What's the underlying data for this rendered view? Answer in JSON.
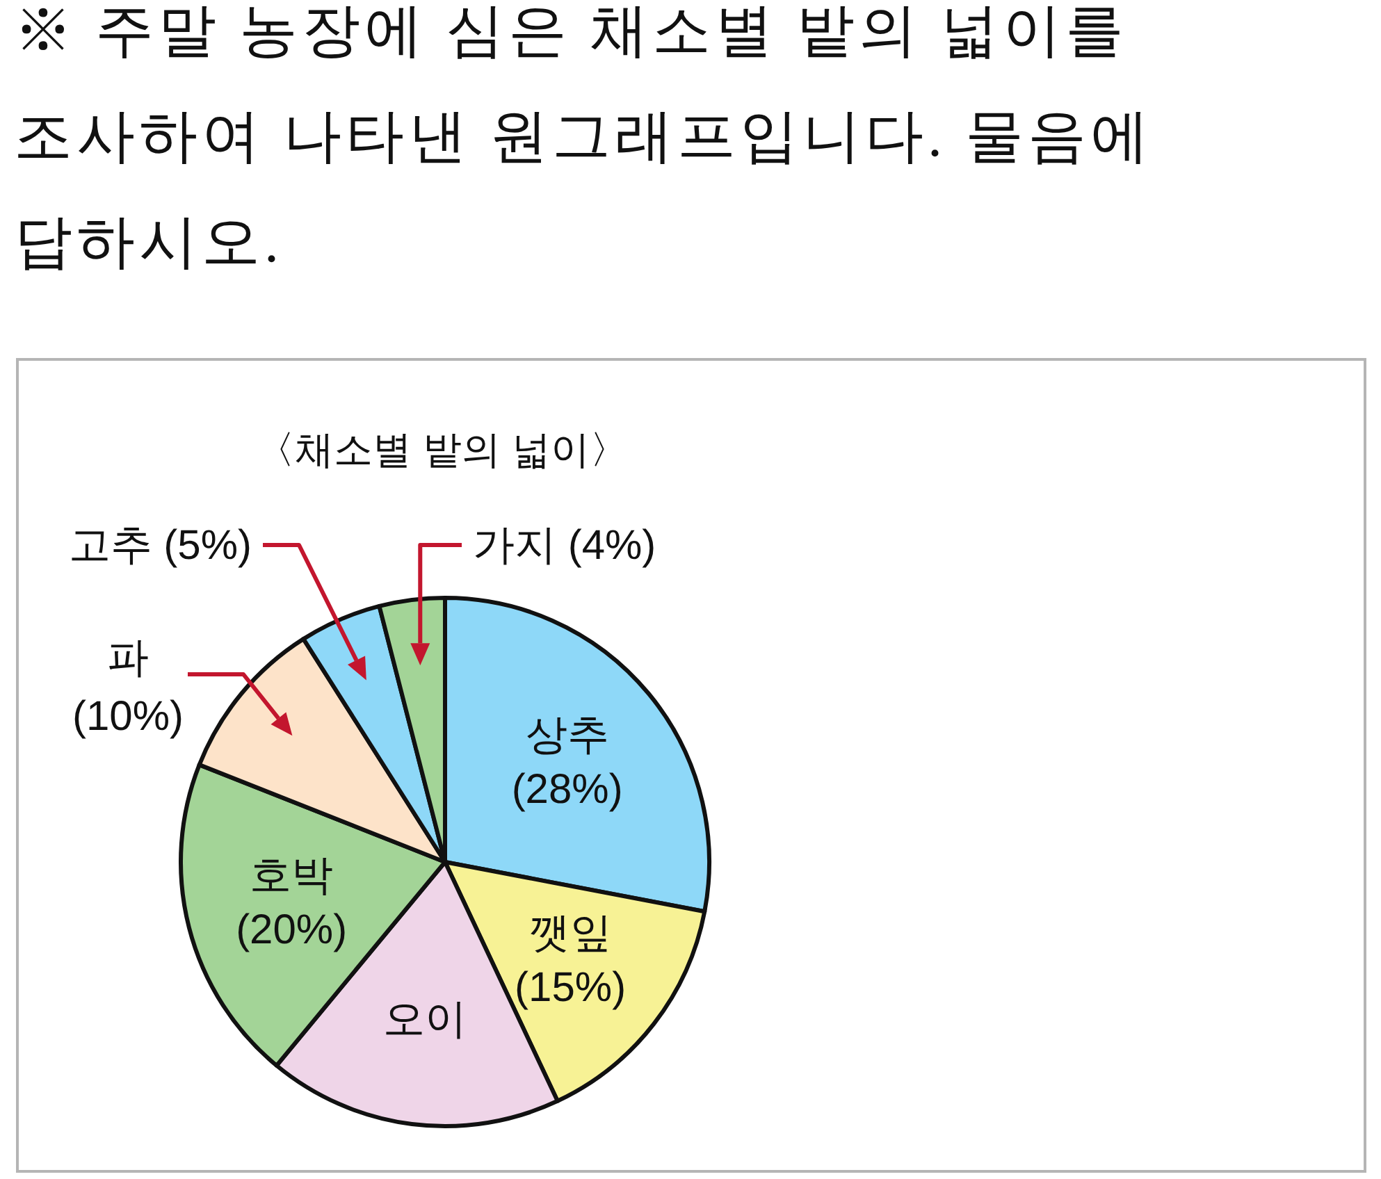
{
  "chart_data": {
    "type": "pie",
    "title": "〈채소별 밭의 넓이〉",
    "annotations": [
      "※ 주말 농장에 심은 채소별 밭의 넓이를 조사하여 나타낸 원그래프입니다. 물음에 답하시오."
    ],
    "categories": [
      "상추",
      "깻잎",
      "오이",
      "호박",
      "파",
      "고추",
      "가지"
    ],
    "values": [
      28,
      15,
      18,
      20,
      10,
      5,
      4
    ],
    "value_labels": [
      "(28%)",
      "(15%)",
      null,
      "(20%)",
      "(10%)",
      "(5%)",
      "(4%)"
    ],
    "colors": [
      "#8ed8f8",
      "#f7f295",
      "#efd5e8",
      "#a3d497",
      "#fde3c9",
      "#8ed8f8",
      "#a3d497"
    ]
  }
}
